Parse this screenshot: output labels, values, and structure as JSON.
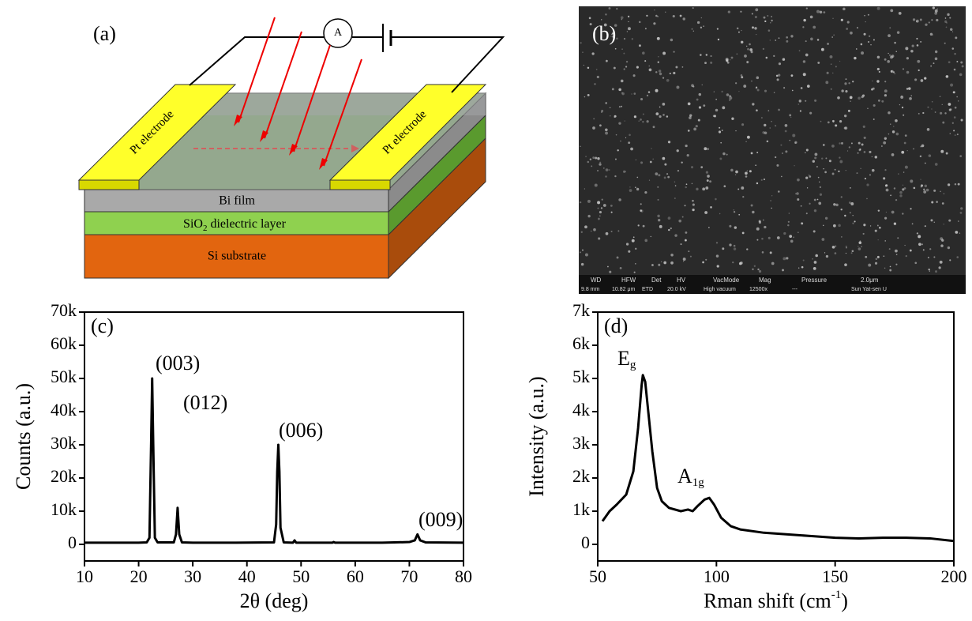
{
  "panel_labels": [
    "(a)",
    "(b)"
  ],
  "diagram": {
    "electrode_left": "Pt electrode",
    "electrode_right": "Pt electrode",
    "film": "Bi film",
    "dielectric": [
      "SiO",
      "2",
      " dielectric layer"
    ],
    "substrate": "Si substrate",
    "meter": "A"
  },
  "sem_info": {
    "header": [
      "WD",
      "HFW",
      "Det",
      "HV",
      "VacMode",
      "Mag",
      "Pressure",
      "2.0μm"
    ],
    "row": [
      "9.8 mm",
      "10.82 μm",
      "ETD",
      "20.0 kV",
      "High vacuum",
      "12500x",
      "---",
      "Sun Yat-sen U"
    ]
  },
  "chart_data": [
    {
      "type": "line",
      "label": "(c)",
      "x_label": "2θ (deg)",
      "y_label": "Counts (a.u.)",
      "color": "#000000",
      "x": [
        10,
        15,
        20,
        21.5,
        22,
        22.3,
        22.5,
        22.7,
        23,
        23.5,
        26.5,
        26.9,
        27.2,
        27.5,
        28,
        30,
        38,
        45,
        45.4,
        45.6,
        45.8,
        46,
        46.2,
        46.8,
        48.5,
        48.8,
        49.1,
        55.8,
        56,
        56.3,
        65,
        70,
        71,
        71.5,
        72,
        73,
        80
      ],
      "values": [
        500,
        500,
        500,
        600,
        2000,
        30000,
        50000,
        30000,
        2000,
        600,
        600,
        3000,
        11000,
        3000,
        600,
        500,
        500,
        600,
        6000,
        22000,
        30000,
        22000,
        5000,
        600,
        500,
        1200,
        500,
        500,
        700,
        500,
        500,
        700,
        1200,
        3000,
        1200,
        600,
        500
      ],
      "xlim": [
        10,
        80
      ],
      "xticks": [
        10,
        20,
        30,
        40,
        50,
        60,
        70,
        80
      ],
      "ylim": [
        -5000,
        70000
      ],
      "yticks": [
        0,
        {
          "value": 10000,
          "label": "10k"
        },
        {
          "value": 20000,
          "label": "20k"
        },
        {
          "value": 30000,
          "label": "30k"
        },
        {
          "value": 40000,
          "label": "40k"
        },
        {
          "value": 50000,
          "label": "50k"
        },
        {
          "value": 60000,
          "label": "60k"
        },
        {
          "value": 70000,
          "label": "70k"
        }
      ],
      "annotations": [
        "(003)",
        "(012)",
        "(006)",
        "(009)"
      ]
    },
    {
      "type": "line",
      "label": "(d)",
      "x_label": [
        "Rman shift (cm",
        "-1",
        ")"
      ],
      "y_label": "Intensity (a.u.)",
      "color": "#000000",
      "x": [
        52,
        55,
        58,
        62,
        65,
        67,
        68.5,
        69,
        70,
        71,
        73,
        75,
        77,
        80,
        85,
        88,
        90,
        92,
        95,
        97,
        99,
        102,
        106,
        110,
        120,
        130,
        140,
        150,
        160,
        170,
        180,
        190,
        200
      ],
      "values": [
        700,
        1000,
        1200,
        1500,
        2200,
        3500,
        4800,
        5100,
        4900,
        4200,
        2800,
        1700,
        1300,
        1100,
        1000,
        1050,
        1000,
        1150,
        1350,
        1400,
        1200,
        800,
        550,
        450,
        350,
        300,
        250,
        200,
        180,
        200,
        200,
        180,
        100
      ],
      "xlim": [
        50,
        200
      ],
      "xticks": [
        50,
        100,
        150,
        200
      ],
      "ylim": [
        -500,
        7000
      ],
      "yticks": [
        0,
        {
          "value": 1000,
          "label": "1k"
        },
        {
          "value": 2000,
          "label": "2k"
        },
        {
          "value": 3000,
          "label": "3k"
        },
        {
          "value": 4000,
          "label": "4k"
        },
        {
          "value": 5000,
          "label": "5k"
        },
        {
          "value": 6000,
          "label": "6k"
        },
        {
          "value": 7000,
          "label": "7k"
        }
      ],
      "annotations": [
        [
          "E",
          "g"
        ],
        [
          "A",
          "1g"
        ]
      ]
    }
  ]
}
